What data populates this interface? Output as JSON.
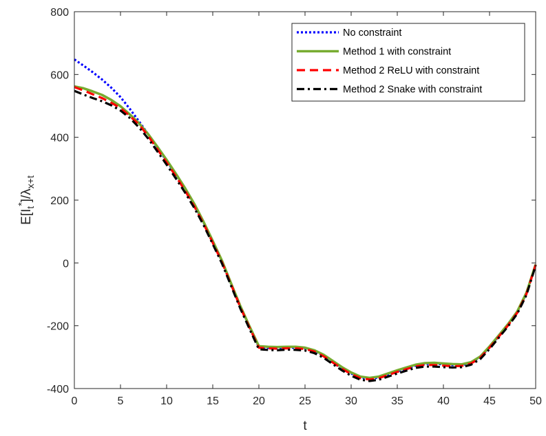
{
  "chart_data": {
    "type": "line",
    "title": "",
    "xlabel": "t",
    "ylabel": {
      "base": "E[I",
      "sub_t": "t",
      "sup_star": "*",
      "close": "]/λ",
      "sub_xt": "x+t"
    },
    "xlim": [
      0,
      50
    ],
    "ylim": [
      -400,
      800
    ],
    "xticks": [
      0,
      5,
      10,
      15,
      20,
      25,
      30,
      35,
      40,
      45,
      50
    ],
    "yticks": [
      -400,
      -200,
      0,
      200,
      400,
      600,
      800
    ],
    "grid": false,
    "legend_position": "top-right",
    "series": [
      {
        "name": "No constraint",
        "color": "#0000ff",
        "style": "dotted",
        "x": [
          0,
          1,
          2,
          3,
          4,
          5,
          6,
          7,
          8,
          9,
          10,
          11,
          12,
          13,
          14,
          15,
          16,
          17,
          18,
          19,
          20,
          21,
          22,
          23,
          24,
          25,
          26,
          27,
          28,
          29,
          30,
          31,
          32,
          33,
          34,
          35,
          36,
          37,
          38,
          39,
          40,
          41,
          42,
          43,
          44,
          45,
          46,
          47,
          48,
          49,
          50
        ],
        "y": [
          648,
          628,
          607,
          584,
          558,
          528,
          491,
          451,
          410,
          367,
          325,
          281,
          235,
          185,
          129,
          68,
          5,
          -68,
          -140,
          -205,
          -268,
          -270,
          -271,
          -270,
          -270,
          -272,
          -280,
          -295,
          -315,
          -335,
          -352,
          -365,
          -369,
          -365,
          -355,
          -345,
          -336,
          -327,
          -322,
          -321,
          -323,
          -325,
          -325,
          -318,
          -300,
          -268,
          -233,
          -197,
          -157,
          -97,
          -5
        ]
      },
      {
        "name": "Method 1 with constraint",
        "color": "#77ac30",
        "style": "solid",
        "x": [
          0,
          1,
          2,
          3,
          4,
          5,
          6,
          7,
          8,
          9,
          10,
          11,
          12,
          13,
          14,
          15,
          16,
          17,
          18,
          19,
          20,
          21,
          22,
          23,
          24,
          25,
          26,
          27,
          28,
          29,
          30,
          31,
          32,
          33,
          34,
          35,
          36,
          37,
          38,
          39,
          40,
          41,
          42,
          43,
          44,
          45,
          46,
          47,
          48,
          49,
          50
        ],
        "y": [
          562,
          556,
          546,
          535,
          519,
          499,
          473,
          445,
          410,
          370,
          328,
          284,
          238,
          188,
          131,
          70,
          7,
          -66,
          -138,
          -203,
          -265,
          -267,
          -268,
          -267,
          -267,
          -270,
          -278,
          -292,
          -312,
          -332,
          -349,
          -362,
          -366,
          -362,
          -352,
          -342,
          -333,
          -324,
          -319,
          -318,
          -320,
          -322,
          -323,
          -316,
          -298,
          -266,
          -231,
          -195,
          -155,
          -95,
          -5
        ]
      },
      {
        "name": "Method 2 ReLU with constraint",
        "color": "#ff0000",
        "style": "dashed",
        "x": [
          0,
          1,
          2,
          3,
          4,
          5,
          6,
          7,
          8,
          9,
          10,
          11,
          12,
          13,
          14,
          15,
          16,
          17,
          18,
          19,
          20,
          21,
          22,
          23,
          24,
          25,
          26,
          27,
          28,
          29,
          30,
          31,
          32,
          33,
          34,
          35,
          36,
          37,
          38,
          39,
          40,
          41,
          42,
          43,
          44,
          45,
          46,
          47,
          48,
          49,
          50
        ],
        "y": [
          560,
          549,
          537,
          525,
          510,
          493,
          468,
          441,
          404,
          362,
          320,
          276,
          230,
          180,
          125,
          64,
          2,
          -70,
          -142,
          -207,
          -270,
          -272,
          -273,
          -272,
          -272,
          -274,
          -282,
          -297,
          -317,
          -337,
          -354,
          -367,
          -371,
          -367,
          -357,
          -347,
          -338,
          -329,
          -325,
          -325,
          -327,
          -329,
          -328,
          -320,
          -302,
          -270,
          -235,
          -199,
          -159,
          -99,
          -6
        ]
      },
      {
        "name": "Method 2 Snake with constraint",
        "color": "#000000",
        "style": "dashdot",
        "x": [
          0,
          1,
          2,
          3,
          4,
          5,
          6,
          7,
          8,
          9,
          10,
          11,
          12,
          13,
          14,
          15,
          16,
          17,
          18,
          19,
          20,
          21,
          22,
          23,
          24,
          25,
          26,
          27,
          28,
          29,
          30,
          31,
          32,
          33,
          34,
          35,
          36,
          37,
          38,
          39,
          40,
          41,
          42,
          43,
          44,
          45,
          46,
          47,
          48,
          49,
          50
        ],
        "y": [
          548,
          536,
          525,
          515,
          502,
          485,
          462,
          432,
          396,
          355,
          313,
          269,
          224,
          175,
          121,
          60,
          -2,
          -74,
          -146,
          -211,
          -275,
          -277,
          -278,
          -276,
          -277,
          -279,
          -287,
          -302,
          -322,
          -342,
          -359,
          -372,
          -376,
          -372,
          -362,
          -352,
          -343,
          -334,
          -330,
          -330,
          -332,
          -333,
          -332,
          -324,
          -306,
          -274,
          -238,
          -202,
          -162,
          -102,
          -8
        ]
      }
    ]
  }
}
